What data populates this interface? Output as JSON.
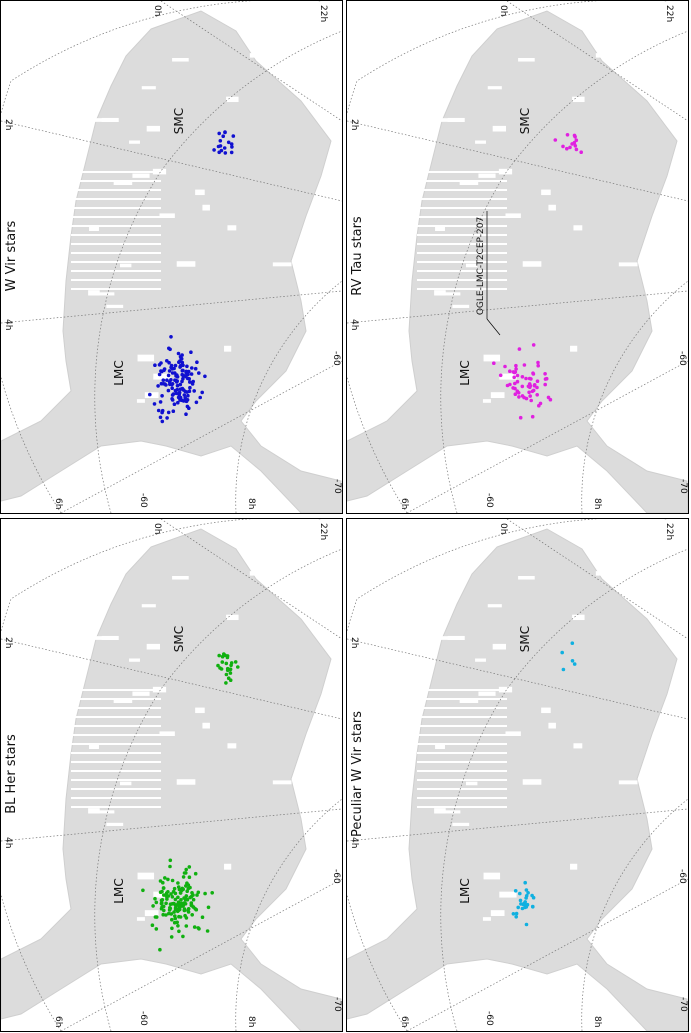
{
  "chart_data": [
    {
      "type": "scatter",
      "title": "W Vir stars",
      "color": "#1010d0",
      "labels": {
        "lmc": "LMC",
        "smc": "SMC"
      },
      "ra_ticks": [
        "0h",
        "2h",
        "4h",
        "6h",
        "8h",
        "22h"
      ],
      "dec_ticks": [
        "-60",
        "-70"
      ],
      "annotation": "",
      "lmc_count": 132,
      "smc_count": 17
    },
    {
      "type": "scatter",
      "title": "RV Tau stars",
      "color": "#e020e0",
      "labels": {
        "lmc": "LMC",
        "smc": "SMC"
      },
      "ra_ticks": [
        "0h",
        "2h",
        "4h",
        "6h",
        "8h",
        "22h"
      ],
      "dec_ticks": [
        "-60",
        "-70"
      ],
      "annotation": "OGLE-LMC-T2CEP-207",
      "lmc_count": 60,
      "smc_count": 13
    },
    {
      "type": "scatter",
      "title": "BL Her stars",
      "color": "#10b010",
      "labels": {
        "lmc": "LMC",
        "smc": "SMC"
      },
      "ra_ticks": [
        "0h",
        "2h",
        "4h",
        "6h",
        "8h",
        "22h"
      ],
      "dec_ticks": [
        "-60",
        "-70"
      ],
      "annotation": "",
      "lmc_count": 150,
      "smc_count": 24
    },
    {
      "type": "scatter",
      "title": "Peculiar W Vir stars",
      "color": "#10b0e0",
      "labels": {
        "lmc": "LMC",
        "smc": "SMC"
      },
      "ra_ticks": [
        "0h",
        "2h",
        "4h",
        "6h",
        "8h",
        "22h"
      ],
      "dec_ticks": [
        "-60",
        "-70"
      ],
      "annotation": "",
      "lmc_count": 26,
      "smc_count": 5
    }
  ]
}
